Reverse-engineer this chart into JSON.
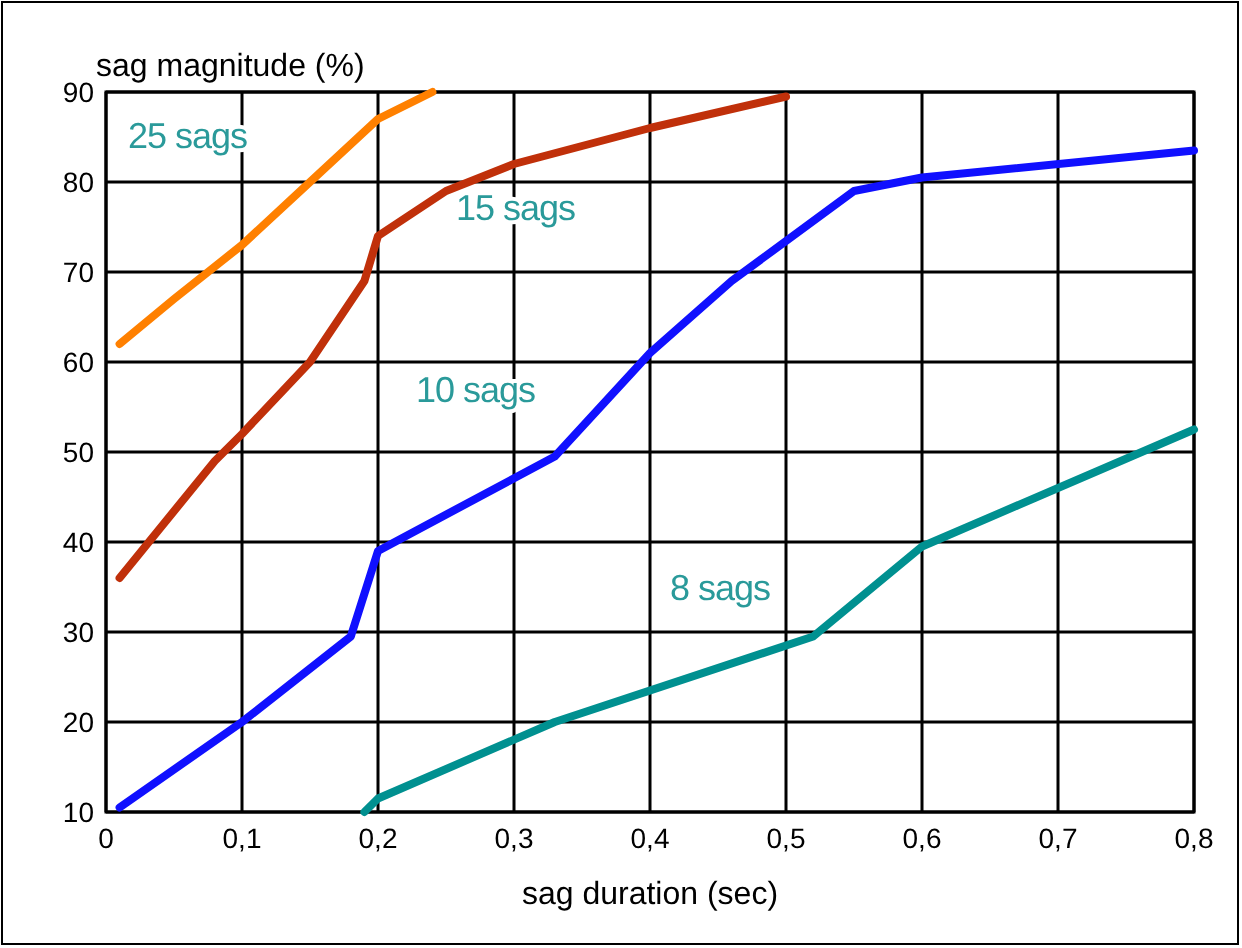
{
  "chart_data": {
    "type": "line",
    "xlabel": "sag duration (sec)",
    "ylabel": "sag magnitude (%)",
    "xlim": [
      0,
      0.8
    ],
    "ylim": [
      10,
      90
    ],
    "xticks": [
      0,
      {
        "value": 0.1,
        "label": "0,1"
      },
      {
        "value": 0.2,
        "label": "0,2"
      },
      {
        "value": 0.3,
        "label": "0,3"
      },
      {
        "value": 0.4,
        "label": "0,4"
      },
      {
        "value": 0.5,
        "label": "0,5"
      },
      {
        "value": 0.6,
        "label": "0,6"
      },
      {
        "value": 0.7,
        "label": "0,7"
      },
      {
        "value": 0.8,
        "label": "0,8"
      }
    ],
    "yticks": [
      10,
      20,
      30,
      40,
      50,
      60,
      70,
      80,
      90
    ],
    "grid": true,
    "marker": "none",
    "line_style": "solid",
    "series": [
      {
        "name": "25 sags",
        "color": "#ff8000",
        "x": [
          0.01,
          0.05,
          0.1,
          0.15,
          0.2,
          0.24
        ],
        "values": [
          62,
          67,
          73,
          80,
          87,
          90
        ]
      },
      {
        "name": "15 sags",
        "color": "#c0300a",
        "x": [
          0.01,
          0.08,
          0.1,
          0.15,
          0.19,
          0.2,
          0.25,
          0.3,
          0.4,
          0.5
        ],
        "values": [
          36,
          49,
          52,
          60,
          69,
          74,
          79,
          82,
          86,
          89.5
        ]
      },
      {
        "name": "10 sags",
        "color": "#1010ff",
        "x": [
          0.01,
          0.1,
          0.18,
          0.2,
          0.33,
          0.4,
          0.46,
          0.55,
          0.6,
          0.8
        ],
        "values": [
          10.5,
          20,
          29.5,
          39,
          49.5,
          61,
          69,
          79,
          80.5,
          83.5
        ]
      },
      {
        "name": "8 sags",
        "color": "#009090",
        "x": [
          0.19,
          0.2,
          0.33,
          0.52,
          0.6,
          0.8
        ],
        "values": [
          10,
          11.5,
          20,
          29.5,
          39.5,
          52.5
        ]
      }
    ]
  }
}
